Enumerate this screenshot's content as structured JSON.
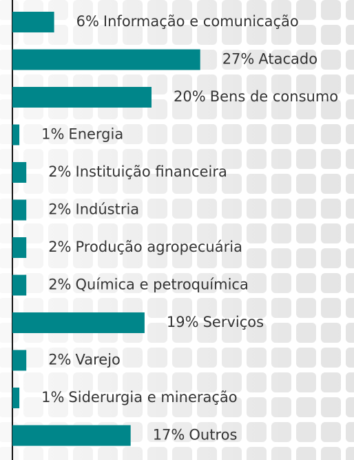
{
  "chart_data": {
    "type": "bar",
    "orientation": "horizontal",
    "color": "#00868a",
    "categories": [
      "Informação e comunicação",
      "Atacado",
      "Bens de consumo",
      "Energia",
      "Instituição financeira",
      "Indústria",
      "Produção agropecuária",
      "Química e petroquímica",
      "Serviços",
      "Varejo",
      "Siderurgia e mineração",
      "Outros"
    ],
    "values": [
      6,
      27,
      20,
      1,
      2,
      2,
      2,
      2,
      19,
      2,
      1,
      17
    ],
    "value_labels": [
      "6%",
      "27%",
      "20%",
      "1%",
      "2%",
      "2%",
      "2%",
      "2%",
      "19%",
      "2%",
      "1%",
      "17%"
    ]
  }
}
